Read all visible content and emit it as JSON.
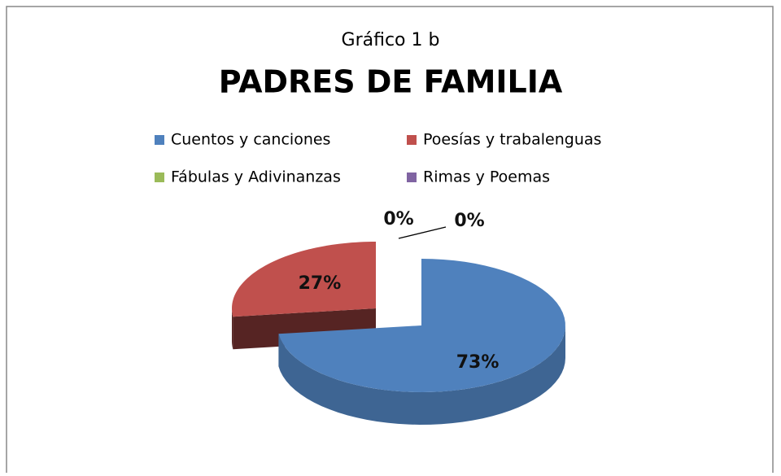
{
  "chart_data": {
    "type": "pie3d",
    "title": "Gráfico 1 b",
    "subtitle": "PADRES DE FAMILIA",
    "categories": [
      "Cuentos y canciones",
      "Poesías y trabalenguas",
      "Fábulas y Adivinanzas",
      "Rimas y Poemas"
    ],
    "values": [
      73,
      27,
      0,
      0
    ],
    "value_labels": [
      "73%",
      "27%",
      "0%",
      "0%"
    ],
    "colors": [
      "#4f81bd",
      "#c0504d",
      "#9bbb59",
      "#8064a2"
    ],
    "legend": "top"
  }
}
